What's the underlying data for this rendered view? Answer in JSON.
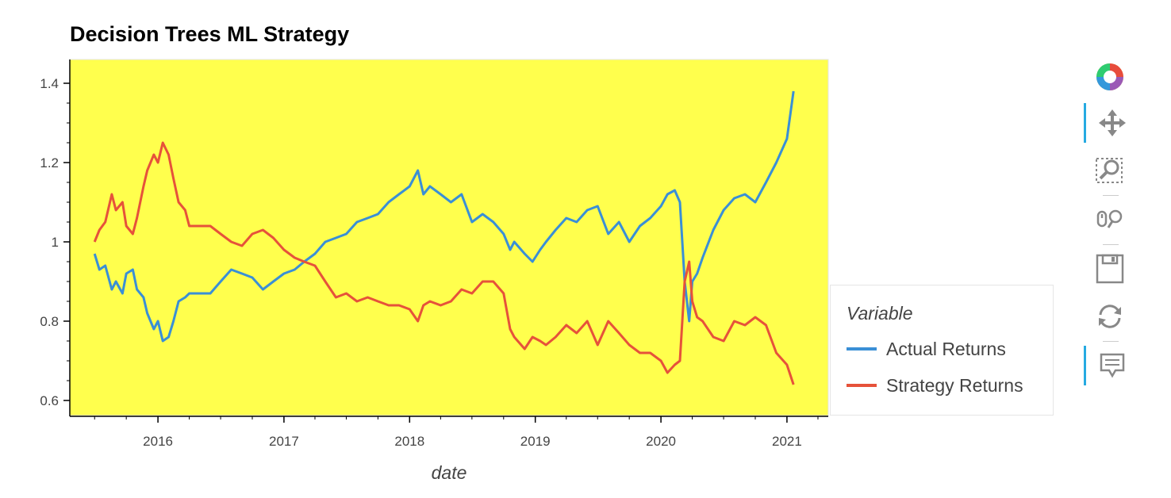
{
  "chart_data": {
    "type": "line",
    "title": "Decision Trees ML Strategy",
    "xlabel": "date",
    "ylabel": "",
    "xlim": [
      "2015-04-20",
      "2021-05-01"
    ],
    "ylim": [
      0.56,
      1.46
    ],
    "x_ticks": [
      "2016-01-01",
      "2017-01-01",
      "2018-01-01",
      "2019-01-01",
      "2020-01-01",
      "2021-01-01"
    ],
    "x_tick_labels": [
      "2016",
      "2017",
      "2018",
      "2019",
      "2020",
      "2021"
    ],
    "y_ticks": [
      0.6,
      0.8,
      1.0,
      1.2,
      1.4
    ],
    "y_tick_labels": [
      "0.6",
      "0.8",
      "1",
      "1.2",
      "1.4"
    ],
    "background": "#ffff4d",
    "legend": {
      "title": "Variable",
      "position": "right"
    },
    "series": [
      {
        "name": "Actual Returns",
        "color": "#3a8fd6",
        "x": [
          "2015-07-01",
          "2015-07-15",
          "2015-08-01",
          "2015-08-20",
          "2015-09-01",
          "2015-09-20",
          "2015-10-01",
          "2015-10-20",
          "2015-11-01",
          "2015-11-20",
          "2015-12-01",
          "2015-12-20",
          "2016-01-01",
          "2016-01-15",
          "2016-02-01",
          "2016-02-15",
          "2016-03-01",
          "2016-03-20",
          "2016-04-01",
          "2016-05-01",
          "2016-06-01",
          "2016-07-01",
          "2016-08-01",
          "2016-09-01",
          "2016-10-01",
          "2016-11-01",
          "2016-12-01",
          "2017-01-01",
          "2017-02-01",
          "2017-03-01",
          "2017-04-01",
          "2017-05-01",
          "2017-06-01",
          "2017-07-01",
          "2017-08-01",
          "2017-09-01",
          "2017-10-01",
          "2017-11-01",
          "2017-12-01",
          "2018-01-01",
          "2018-01-25",
          "2018-02-10",
          "2018-03-01",
          "2018-04-01",
          "2018-05-01",
          "2018-06-01",
          "2018-07-01",
          "2018-08-01",
          "2018-09-01",
          "2018-10-01",
          "2018-10-20",
          "2018-11-01",
          "2018-12-01",
          "2018-12-24",
          "2019-01-15",
          "2019-02-01",
          "2019-03-01",
          "2019-04-01",
          "2019-05-01",
          "2019-06-01",
          "2019-07-01",
          "2019-08-01",
          "2019-09-01",
          "2019-10-01",
          "2019-11-01",
          "2019-12-01",
          "2020-01-01",
          "2020-01-20",
          "2020-02-10",
          "2020-02-25",
          "2020-03-10",
          "2020-03-23",
          "2020-04-01",
          "2020-04-15",
          "2020-05-01",
          "2020-06-01",
          "2020-07-01",
          "2020-08-01",
          "2020-09-01",
          "2020-10-01",
          "2020-11-01",
          "2020-12-01",
          "2021-01-01",
          "2021-01-20"
        ],
        "y": [
          0.97,
          0.93,
          0.94,
          0.88,
          0.9,
          0.87,
          0.92,
          0.93,
          0.88,
          0.86,
          0.82,
          0.78,
          0.8,
          0.75,
          0.76,
          0.8,
          0.85,
          0.86,
          0.87,
          0.87,
          0.87,
          0.9,
          0.93,
          0.92,
          0.91,
          0.88,
          0.9,
          0.92,
          0.93,
          0.95,
          0.97,
          1.0,
          1.01,
          1.02,
          1.05,
          1.06,
          1.07,
          1.1,
          1.12,
          1.14,
          1.18,
          1.12,
          1.14,
          1.12,
          1.1,
          1.12,
          1.05,
          1.07,
          1.05,
          1.02,
          0.98,
          1.0,
          0.97,
          0.95,
          0.98,
          1.0,
          1.03,
          1.06,
          1.05,
          1.08,
          1.09,
          1.02,
          1.05,
          1.0,
          1.04,
          1.06,
          1.09,
          1.12,
          1.13,
          1.1,
          0.9,
          0.8,
          0.9,
          0.92,
          0.96,
          1.03,
          1.08,
          1.11,
          1.12,
          1.1,
          1.15,
          1.2,
          1.26,
          1.38
        ]
      },
      {
        "name": "Strategy Returns",
        "color": "#e6523a",
        "x": [
          "2015-07-01",
          "2015-07-15",
          "2015-08-01",
          "2015-08-20",
          "2015-09-01",
          "2015-09-20",
          "2015-10-01",
          "2015-10-20",
          "2015-11-01",
          "2015-11-20",
          "2015-12-01",
          "2015-12-20",
          "2016-01-01",
          "2016-01-15",
          "2016-02-01",
          "2016-02-15",
          "2016-03-01",
          "2016-03-20",
          "2016-04-01",
          "2016-05-01",
          "2016-06-01",
          "2016-07-01",
          "2016-08-01",
          "2016-09-01",
          "2016-10-01",
          "2016-11-01",
          "2016-12-01",
          "2017-01-01",
          "2017-02-01",
          "2017-03-01",
          "2017-04-01",
          "2017-05-01",
          "2017-06-01",
          "2017-07-01",
          "2017-08-01",
          "2017-09-01",
          "2017-10-01",
          "2017-11-01",
          "2017-12-01",
          "2018-01-01",
          "2018-01-25",
          "2018-02-10",
          "2018-03-01",
          "2018-04-01",
          "2018-05-01",
          "2018-06-01",
          "2018-07-01",
          "2018-08-01",
          "2018-09-01",
          "2018-10-01",
          "2018-10-20",
          "2018-11-01",
          "2018-12-01",
          "2018-12-24",
          "2019-01-15",
          "2019-02-01",
          "2019-03-01",
          "2019-04-01",
          "2019-05-01",
          "2019-06-01",
          "2019-07-01",
          "2019-08-01",
          "2019-09-01",
          "2019-10-01",
          "2019-11-01",
          "2019-12-01",
          "2020-01-01",
          "2020-01-20",
          "2020-02-10",
          "2020-02-25",
          "2020-03-10",
          "2020-03-23",
          "2020-04-01",
          "2020-04-15",
          "2020-05-01",
          "2020-06-01",
          "2020-07-01",
          "2020-08-01",
          "2020-09-01",
          "2020-10-01",
          "2020-11-01",
          "2020-12-01",
          "2021-01-01",
          "2021-01-20"
        ],
        "y": [
          1.0,
          1.03,
          1.05,
          1.12,
          1.08,
          1.1,
          1.04,
          1.02,
          1.06,
          1.14,
          1.18,
          1.22,
          1.2,
          1.25,
          1.22,
          1.16,
          1.1,
          1.08,
          1.04,
          1.04,
          1.04,
          1.02,
          1.0,
          0.99,
          1.02,
          1.03,
          1.01,
          0.98,
          0.96,
          0.95,
          0.94,
          0.9,
          0.86,
          0.87,
          0.85,
          0.86,
          0.85,
          0.84,
          0.84,
          0.83,
          0.8,
          0.84,
          0.85,
          0.84,
          0.85,
          0.88,
          0.87,
          0.9,
          0.9,
          0.87,
          0.78,
          0.76,
          0.73,
          0.76,
          0.75,
          0.74,
          0.76,
          0.79,
          0.77,
          0.8,
          0.74,
          0.8,
          0.77,
          0.74,
          0.72,
          0.72,
          0.7,
          0.67,
          0.69,
          0.7,
          0.9,
          0.95,
          0.85,
          0.81,
          0.8,
          0.76,
          0.75,
          0.8,
          0.79,
          0.81,
          0.79,
          0.72,
          0.69,
          0.64
        ]
      }
    ]
  },
  "legend": {
    "title": "Variable",
    "items": [
      {
        "label": "Actual Returns",
        "color": "#3a8fd6"
      },
      {
        "label": "Strategy Returns",
        "color": "#e6523a"
      }
    ]
  },
  "toolbar": {
    "tools": [
      "bokeh-logo-icon",
      "pan-icon",
      "box-zoom-icon",
      "wheel-zoom-icon",
      "save-icon",
      "reset-icon",
      "hover-icon"
    ]
  }
}
